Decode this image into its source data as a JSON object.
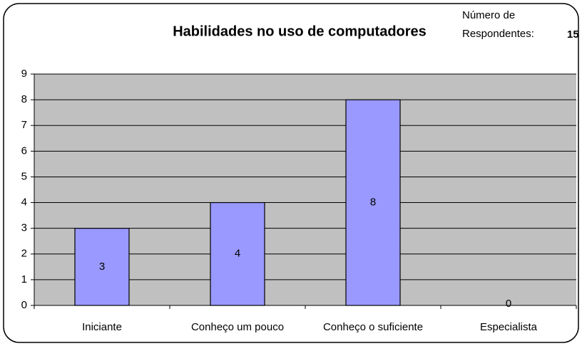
{
  "chart_data": {
    "type": "bar",
    "title": "Habilidades no uso de computadores",
    "annotation_lines": [
      "Número de",
      "Respondentes:"
    ],
    "respondents": 15,
    "categories": [
      "Iniciante",
      "Conheço um pouco",
      "Conheço o suficiente",
      "Especialista"
    ],
    "values": [
      3,
      4,
      8,
      0
    ],
    "color": "#9999ff",
    "plot_background": "#c0c0c0",
    "ylim": [
      0,
      9
    ],
    "yticks": [
      0,
      1,
      2,
      3,
      4,
      5,
      6,
      7,
      8,
      9
    ],
    "grid": true
  }
}
